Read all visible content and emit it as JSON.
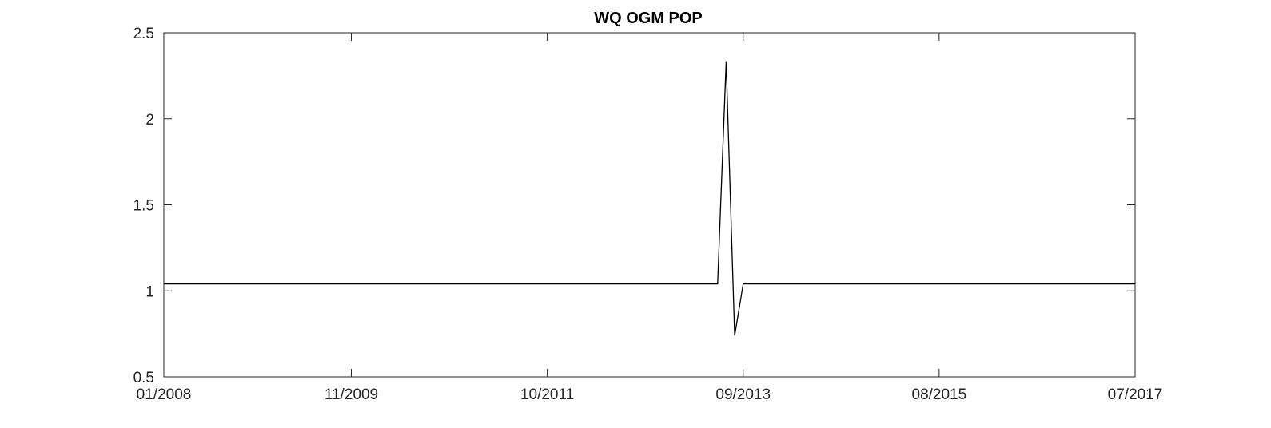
{
  "chart_data": {
    "type": "line",
    "title": "WQ OGM POP",
    "xlabel": "",
    "ylabel": "",
    "x_ticks": [
      "01/2008",
      "11/2009",
      "10/2011",
      "09/2013",
      "08/2015",
      "07/2017"
    ],
    "y_ticks": [
      "0.5",
      "1",
      "1.5",
      "2",
      "2.5"
    ],
    "xlim": [
      "2008-01",
      "2017-07"
    ],
    "ylim": [
      0.5,
      2.5
    ],
    "grid": false,
    "series": [
      {
        "color": "#000000",
        "points": [
          {
            "x": "2008-01",
            "y": 1.04
          },
          {
            "x": "2013-06",
            "y": 1.04
          },
          {
            "x": "2013-07",
            "y": 2.33
          },
          {
            "x": "2013-08",
            "y": 0.74
          },
          {
            "x": "2013-09",
            "y": 1.04
          },
          {
            "x": "2017-07",
            "y": 1.04
          }
        ]
      }
    ]
  }
}
